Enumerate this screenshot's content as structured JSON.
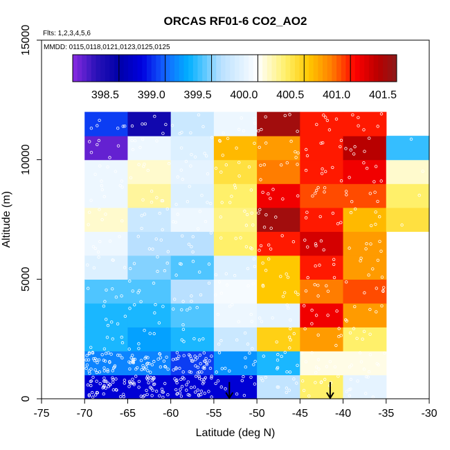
{
  "chart_data": {
    "type": "heatmap",
    "title": "ORCAS RF01-6 CO2_AO2",
    "flights_note": "Flts: 1,2,3,4,5,6",
    "dates_note": "MMDD: 0115,0118,0121,0123,0125,0125",
    "xlabel": "Latitude (deg N)",
    "ylabel": "Altitude (m)",
    "xlim": [
      -75,
      -30
    ],
    "ylim": [
      0,
      15000
    ],
    "x_ticks": [
      -75,
      -70,
      -65,
      -60,
      -55,
      -50,
      -45,
      -40,
      -35,
      -30
    ],
    "y_ticks": [
      0,
      5000,
      10000,
      15000
    ],
    "x_bin_edges": [
      -70,
      -65,
      -60,
      -55,
      -50,
      -45,
      -40,
      -35,
      -30
    ],
    "alt_bin_height": 1000,
    "colorbar": {
      "min": 398.0,
      "max": 401.5,
      "ticks": [
        398.5,
        399.0,
        399.5,
        400.0,
        400.5,
        401.0,
        401.5
      ],
      "tick_labels": [
        "398.5",
        "399.0",
        "399.5",
        "400.0",
        "400.5",
        "401.0",
        "401.5"
      ]
    },
    "columns": [
      {
        "lat_min": -70,
        "lat_max": -65,
        "cells": [
          [
            0,
            398.7
          ],
          [
            1,
            399.1
          ],
          [
            2,
            399.3
          ],
          [
            3,
            399.3
          ],
          [
            4,
            399.4
          ],
          [
            5,
            399.8
          ],
          [
            6,
            399.9
          ],
          [
            7,
            400.1
          ],
          [
            8,
            399.9
          ],
          [
            9,
            399.9
          ],
          [
            10,
            398.1
          ],
          [
            11,
            398.9
          ]
        ]
      },
      {
        "lat_min": -65,
        "lat_max": -60,
        "cells": [
          [
            0,
            398.7
          ],
          [
            1,
            399.1
          ],
          [
            2,
            399.2
          ],
          [
            3,
            399.3
          ],
          [
            4,
            399.4
          ],
          [
            5,
            399.5
          ],
          [
            6,
            399.6
          ],
          [
            7,
            399.7
          ],
          [
            8,
            400.2
          ],
          [
            9,
            400.1
          ],
          [
            10,
            399.9
          ],
          [
            11,
            398.4
          ]
        ]
      },
      {
        "lat_min": -60,
        "lat_max": -55,
        "cells": [
          [
            0,
            398.7
          ],
          [
            1,
            398.9
          ],
          [
            2,
            399.3
          ],
          [
            3,
            399.4
          ],
          [
            4,
            399.6
          ],
          [
            5,
            399.4
          ],
          [
            6,
            399.6
          ],
          [
            7,
            399.9
          ],
          [
            8,
            399.8
          ],
          [
            9,
            399.85
          ],
          [
            10,
            399.8
          ],
          [
            11,
            399.7
          ]
        ]
      },
      {
        "lat_min": -55,
        "lat_max": -50,
        "cells": [
          [
            0,
            398.7
          ],
          [
            1,
            399.15
          ],
          [
            2,
            399.7
          ],
          [
            3,
            399.9
          ],
          [
            4,
            399.95
          ],
          [
            5,
            399.8
          ],
          [
            6,
            400.3
          ],
          [
            7,
            400.25
          ],
          [
            8,
            400.3
          ],
          [
            9,
            400.4
          ],
          [
            10,
            400.6
          ],
          [
            11,
            399.9
          ]
        ]
      },
      {
        "lat_min": -50,
        "lat_max": -45,
        "cells": [
          [
            0,
            399.65
          ],
          [
            1,
            399.3
          ],
          [
            2,
            400.5
          ],
          [
            3,
            399.85
          ],
          [
            4,
            400.55
          ],
          [
            5,
            400.55
          ],
          [
            6,
            401.0
          ],
          [
            7,
            401.4
          ],
          [
            8,
            401.1
          ],
          [
            9,
            400.8
          ],
          [
            10,
            400.7
          ],
          [
            11,
            401.4
          ]
        ]
      },
      {
        "lat_min": -45,
        "lat_max": -40,
        "cells": [
          [
            0,
            400.3
          ],
          [
            1,
            400.05
          ],
          [
            2,
            400.7
          ],
          [
            3,
            401.1
          ],
          [
            4,
            400.8
          ],
          [
            5,
            401.0
          ],
          [
            6,
            401.2
          ],
          [
            7,
            401.0
          ],
          [
            8,
            400.9
          ],
          [
            9,
            401.0
          ],
          [
            10,
            401.0
          ],
          [
            11,
            401.0
          ]
        ]
      },
      {
        "lat_min": -40,
        "lat_max": -35,
        "cells": [
          [
            0,
            399.85
          ],
          [
            1,
            400.05
          ],
          [
            2,
            400.3
          ],
          [
            3,
            400.7
          ],
          [
            4,
            400.9
          ],
          [
            5,
            400.7
          ],
          [
            6,
            400.7
          ],
          [
            7,
            400.6
          ],
          [
            8,
            400.9
          ],
          [
            9,
            401.1
          ],
          [
            10,
            401.3
          ],
          [
            11,
            401.0
          ]
        ]
      },
      {
        "lat_min": -35,
        "lat_max": -30,
        "cells": [
          [
            7,
            400.4
          ],
          [
            8,
            400.3
          ],
          [
            9,
            400.1
          ],
          [
            10,
            399.35
          ]
        ]
      }
    ],
    "markers": [
      {
        "type": "arrow-down",
        "lat": -53.2,
        "alt_top": 700,
        "alt_bottom": 0
      },
      {
        "type": "arrow-down",
        "lat": -41.5,
        "alt_top": 700,
        "alt_bottom": 0
      }
    ]
  },
  "palette": {
    "stops": [
      "#8a2be2",
      "#2a12b8",
      "#0000a8",
      "#0000e0",
      "#1466ff",
      "#00b0ff",
      "#b9e0ff",
      "#ffffff",
      "#fff06a",
      "#ffc800",
      "#ff7d00",
      "#ff0000",
      "#b80000",
      "#8b1a1a"
    ],
    "stop_values": [
      398.0,
      398.25,
      398.5,
      398.75,
      399.0,
      399.25,
      399.6,
      400.0,
      400.3,
      400.55,
      400.8,
      401.05,
      401.3,
      401.5
    ],
    "dot_color": "#ffffff",
    "frame_color": "#000000"
  }
}
